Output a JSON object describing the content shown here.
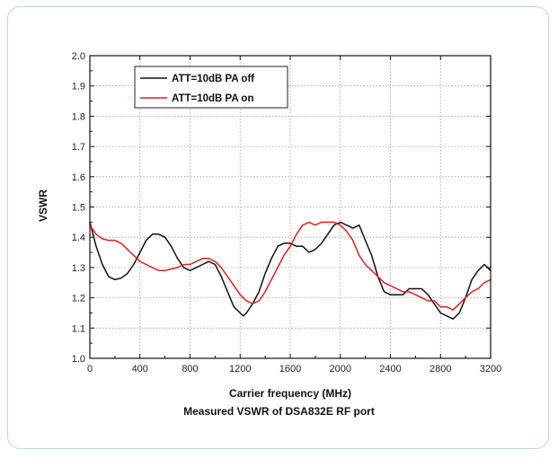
{
  "caption": "Measured VSWR of DSA832E RF port",
  "chart_data": {
    "type": "line",
    "title": "",
    "xlabel": "Carrier frequency (MHz)",
    "ylabel": "VSWR",
    "xlim": [
      0,
      3200
    ],
    "ylim": [
      1.0,
      2.0
    ],
    "x_ticks": [
      0,
      400,
      800,
      1200,
      1600,
      2000,
      2400,
      2800,
      3200
    ],
    "y_ticks": [
      1.0,
      1.1,
      1.2,
      1.3,
      1.4,
      1.5,
      1.6,
      1.7,
      1.8,
      1.9,
      2.0
    ],
    "grid": true,
    "legend_position": "top-left",
    "series": [
      {
        "name": "ATT=10dB PA off",
        "color": "#111111",
        "points": [
          [
            0,
            1.45
          ],
          [
            50,
            1.37
          ],
          [
            100,
            1.31
          ],
          [
            150,
            1.27
          ],
          [
            200,
            1.26
          ],
          [
            250,
            1.265
          ],
          [
            300,
            1.28
          ],
          [
            350,
            1.31
          ],
          [
            400,
            1.35
          ],
          [
            450,
            1.39
          ],
          [
            500,
            1.41
          ],
          [
            550,
            1.41
          ],
          [
            600,
            1.4
          ],
          [
            650,
            1.37
          ],
          [
            700,
            1.33
          ],
          [
            750,
            1.3
          ],
          [
            800,
            1.29
          ],
          [
            850,
            1.3
          ],
          [
            900,
            1.31
          ],
          [
            950,
            1.32
          ],
          [
            1000,
            1.31
          ],
          [
            1050,
            1.27
          ],
          [
            1100,
            1.22
          ],
          [
            1150,
            1.17
          ],
          [
            1200,
            1.15
          ],
          [
            1225,
            1.14
          ],
          [
            1250,
            1.15
          ],
          [
            1300,
            1.18
          ],
          [
            1350,
            1.22
          ],
          [
            1400,
            1.28
          ],
          [
            1450,
            1.33
          ],
          [
            1500,
            1.37
          ],
          [
            1550,
            1.38
          ],
          [
            1600,
            1.38
          ],
          [
            1650,
            1.37
          ],
          [
            1700,
            1.37
          ],
          [
            1750,
            1.35
          ],
          [
            1800,
            1.36
          ],
          [
            1850,
            1.38
          ],
          [
            1900,
            1.41
          ],
          [
            1950,
            1.44
          ],
          [
            2000,
            1.45
          ],
          [
            2050,
            1.44
          ],
          [
            2100,
            1.43
          ],
          [
            2150,
            1.44
          ],
          [
            2200,
            1.39
          ],
          [
            2250,
            1.34
          ],
          [
            2300,
            1.27
          ],
          [
            2350,
            1.22
          ],
          [
            2400,
            1.21
          ],
          [
            2450,
            1.21
          ],
          [
            2500,
            1.21
          ],
          [
            2550,
            1.23
          ],
          [
            2600,
            1.23
          ],
          [
            2650,
            1.23
          ],
          [
            2700,
            1.21
          ],
          [
            2750,
            1.18
          ],
          [
            2800,
            1.15
          ],
          [
            2850,
            1.14
          ],
          [
            2900,
            1.13
          ],
          [
            2950,
            1.15
          ],
          [
            3000,
            1.2
          ],
          [
            3050,
            1.26
          ],
          [
            3100,
            1.29
          ],
          [
            3150,
            1.31
          ],
          [
            3200,
            1.29
          ]
        ]
      },
      {
        "name": "ATT=10dB PA on",
        "color": "#e02020",
        "points": [
          [
            0,
            1.44
          ],
          [
            50,
            1.41
          ],
          [
            100,
            1.395
          ],
          [
            150,
            1.39
          ],
          [
            200,
            1.39
          ],
          [
            250,
            1.38
          ],
          [
            300,
            1.36
          ],
          [
            350,
            1.34
          ],
          [
            400,
            1.32
          ],
          [
            450,
            1.31
          ],
          [
            500,
            1.3
          ],
          [
            550,
            1.29
          ],
          [
            600,
            1.29
          ],
          [
            650,
            1.295
          ],
          [
            700,
            1.3
          ],
          [
            750,
            1.31
          ],
          [
            800,
            1.31
          ],
          [
            850,
            1.32
          ],
          [
            900,
            1.33
          ],
          [
            950,
            1.33
          ],
          [
            1000,
            1.32
          ],
          [
            1050,
            1.3
          ],
          [
            1100,
            1.27
          ],
          [
            1150,
            1.24
          ],
          [
            1200,
            1.21
          ],
          [
            1250,
            1.19
          ],
          [
            1300,
            1.18
          ],
          [
            1350,
            1.19
          ],
          [
            1400,
            1.22
          ],
          [
            1450,
            1.26
          ],
          [
            1500,
            1.3
          ],
          [
            1550,
            1.34
          ],
          [
            1600,
            1.37
          ],
          [
            1650,
            1.41
          ],
          [
            1700,
            1.44
          ],
          [
            1750,
            1.45
          ],
          [
            1800,
            1.44
          ],
          [
            1850,
            1.45
          ],
          [
            1900,
            1.45
          ],
          [
            1950,
            1.45
          ],
          [
            2000,
            1.44
          ],
          [
            2050,
            1.42
          ],
          [
            2100,
            1.39
          ],
          [
            2150,
            1.34
          ],
          [
            2200,
            1.31
          ],
          [
            2250,
            1.29
          ],
          [
            2300,
            1.27
          ],
          [
            2350,
            1.25
          ],
          [
            2400,
            1.24
          ],
          [
            2450,
            1.23
          ],
          [
            2500,
            1.22
          ],
          [
            2550,
            1.22
          ],
          [
            2600,
            1.21
          ],
          [
            2650,
            1.2
          ],
          [
            2700,
            1.19
          ],
          [
            2750,
            1.19
          ],
          [
            2800,
            1.17
          ],
          [
            2850,
            1.17
          ],
          [
            2900,
            1.16
          ],
          [
            2950,
            1.18
          ],
          [
            3000,
            1.2
          ],
          [
            3050,
            1.22
          ],
          [
            3100,
            1.23
          ],
          [
            3150,
            1.25
          ],
          [
            3200,
            1.26
          ]
        ]
      }
    ]
  }
}
